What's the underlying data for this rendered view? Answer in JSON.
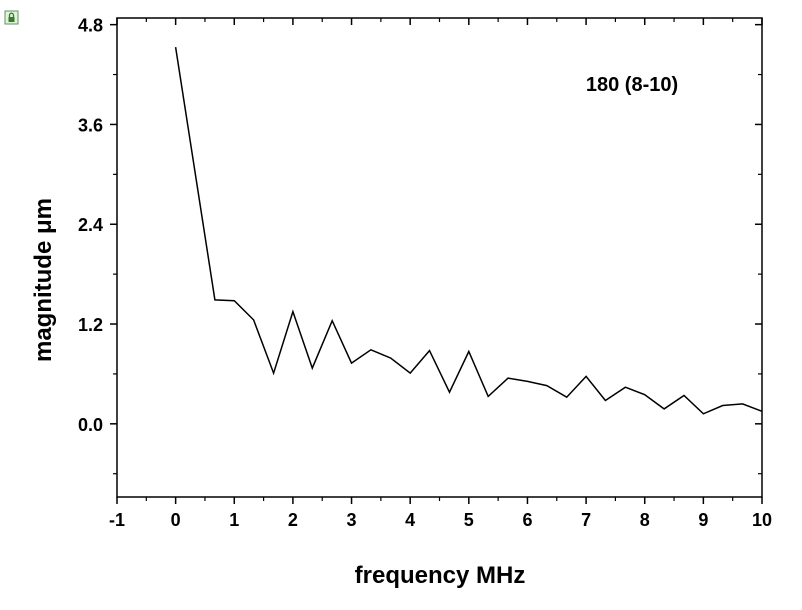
{
  "window": {
    "lock_icon": "lock-icon"
  },
  "chart_data": {
    "type": "line",
    "title": "",
    "annotation": "180 (8-10)",
    "xlabel": "frequency MHz",
    "ylabel": "magnitude μm",
    "xlim": [
      -1,
      10
    ],
    "ylim": [
      -0.88,
      4.88
    ],
    "x_ticks": [
      -1,
      0,
      1,
      2,
      3,
      4,
      5,
      6,
      7,
      8,
      9,
      10
    ],
    "x_tick_labels": [
      "-1",
      "0",
      "1",
      "2",
      "3",
      "4",
      "5",
      "6",
      "7",
      "8",
      "9",
      "10"
    ],
    "y_ticks": [
      0.0,
      1.2,
      2.4,
      3.6,
      4.8
    ],
    "y_tick_labels": [
      "0.0",
      "1.2",
      "2.4",
      "3.6",
      "4.8"
    ],
    "grid": false,
    "series": [
      {
        "x": [
          0,
          0.67,
          1.0,
          1.33,
          1.67,
          2.0,
          2.33,
          2.67,
          3.0,
          3.33,
          3.67,
          4.0,
          4.33,
          4.67,
          5.0,
          5.33,
          5.67,
          6.0,
          6.33,
          6.67,
          7.0,
          7.33,
          7.67,
          8.0,
          8.33,
          8.67,
          9.0,
          9.33,
          9.67,
          10.0
        ],
        "values": [
          4.53,
          1.49,
          1.48,
          1.25,
          0.61,
          1.35,
          0.67,
          1.24,
          0.73,
          0.89,
          0.79,
          0.61,
          0.88,
          0.38,
          0.87,
          0.33,
          0.55,
          0.51,
          0.46,
          0.32,
          0.57,
          0.28,
          0.44,
          0.35,
          0.18,
          0.34,
          0.12,
          0.22,
          0.24,
          0.15
        ]
      }
    ]
  }
}
